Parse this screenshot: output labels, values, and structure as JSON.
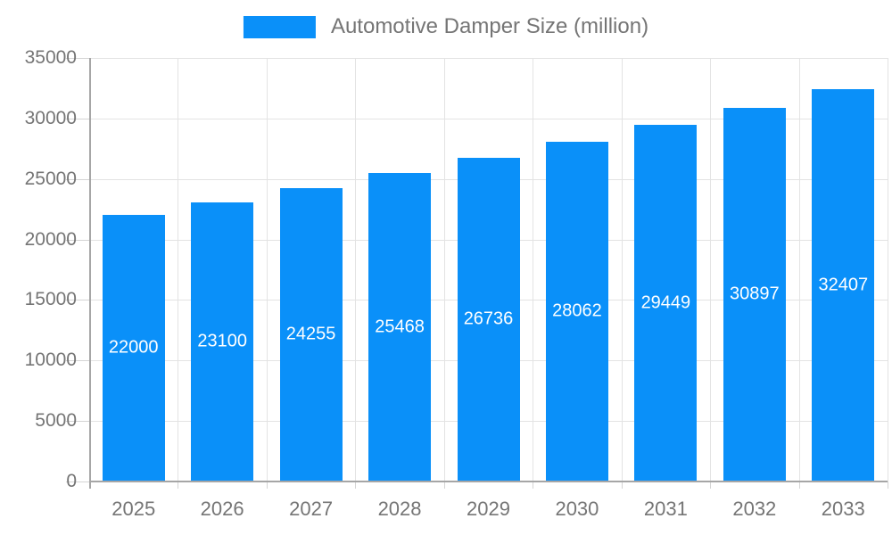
{
  "legend": {
    "label": "Automotive Damper Size (million)"
  },
  "chart_data": {
    "type": "bar",
    "title": "Automotive Damper Size (million)",
    "categories": [
      "2025",
      "2026",
      "2027",
      "2028",
      "2029",
      "2030",
      "2031",
      "2032",
      "2033"
    ],
    "values": [
      22000,
      23100,
      24255,
      25468,
      26736,
      28062,
      29449,
      30897,
      32407
    ],
    "xlabel": "",
    "ylabel": "",
    "ylim": [
      0,
      35000
    ],
    "y_ticks": [
      0,
      5000,
      10000,
      15000,
      20000,
      25000,
      30000,
      35000
    ],
    "grid": true,
    "legend_position": "top",
    "bar_labels_inside": true
  },
  "colors": {
    "bar": "#0a90f9",
    "axis_text": "#757575",
    "grid": "#e3e3e3",
    "axis_line": "#a6a6a6",
    "tick": "#d4d4d4",
    "bar_label": "#ffffff",
    "background": "#ffffff"
  }
}
